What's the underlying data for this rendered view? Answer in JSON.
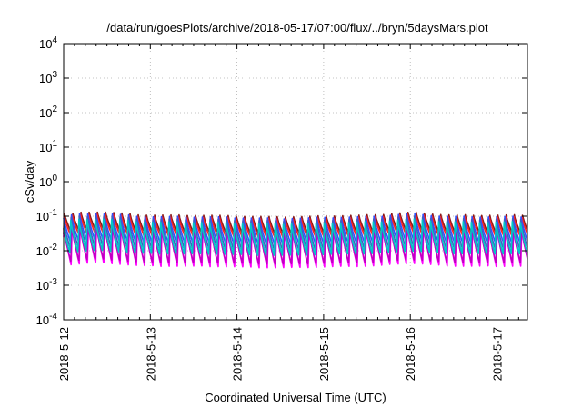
{
  "chart_data": {
    "type": "line",
    "title": "/data/run/goesPlots/archive/2018-05-17/07:00/flux/../bryn/5daysMars.plot",
    "xlabel": "Coordinated Universal Time (UTC)",
    "ylabel": "cSv/day",
    "yscale": "log",
    "ylim": [
      0.0001,
      10000
    ],
    "xlim_days": [
      0,
      5.35
    ],
    "y_ticks": [
      {
        "base": "10",
        "exp": "-4"
      },
      {
        "base": "10",
        "exp": "-3"
      },
      {
        "base": "10",
        "exp": "-2"
      },
      {
        "base": "10",
        "exp": "-1"
      },
      {
        "base": "10",
        "exp": "0"
      },
      {
        "base": "10",
        "exp": "1"
      },
      {
        "base": "10",
        "exp": "2"
      },
      {
        "base": "10",
        "exp": "3"
      },
      {
        "base": "10",
        "exp": "4"
      }
    ],
    "x_ticks": [
      "2018-5-12",
      "2018-5-13",
      "2018-5-14",
      "2018-5-15",
      "2018-5-16",
      "2018-5-17"
    ],
    "grid": true,
    "legend": "none",
    "series": [
      {
        "color": "#8b1a1a",
        "peak": 0.11,
        "trough": 0.028
      },
      {
        "color": "#ff2020",
        "peak": 0.095,
        "trough": 0.022
      },
      {
        "color": "#ff00ff",
        "peak": 0.05,
        "trough": 0.0035
      },
      {
        "color": "#c000c0",
        "peak": 0.045,
        "trough": 0.0045
      },
      {
        "color": "#3050ff",
        "peak": 0.1,
        "trough": 0.016
      },
      {
        "color": "#4060c0",
        "peak": 0.085,
        "trough": 0.011
      },
      {
        "color": "#00c8c8",
        "peak": 0.07,
        "trough": 0.008
      }
    ]
  }
}
